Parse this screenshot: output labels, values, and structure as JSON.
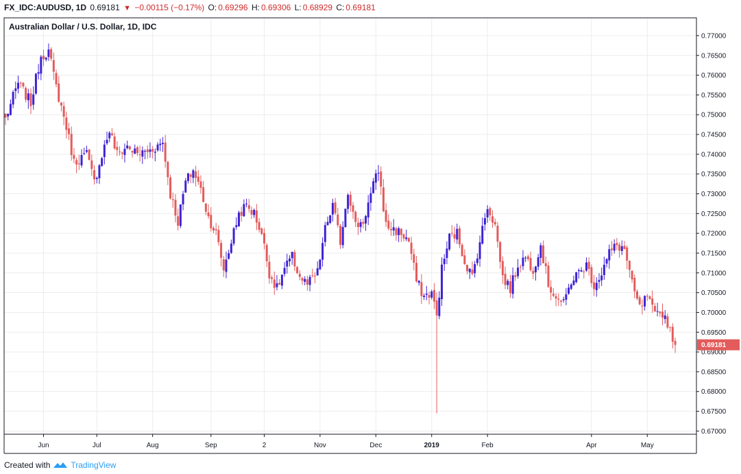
{
  "header": {
    "symbol": "FX_IDC:AUDUSD, 1D",
    "last": "0.69181",
    "change": "−0.00115 (−0.17%)",
    "open_label": "O:",
    "open": "0.69296",
    "high_label": "H:",
    "high": "0.69306",
    "low_label": "L:",
    "low": "0.68929",
    "close_label": "C:",
    "close": "0.69181"
  },
  "chart_title": "Australian Dollar / U.S. Dollar, 1D, IDC",
  "footer": {
    "created_with": "Created with",
    "brand": "TradingView",
    "logo_icon": "tradingview-logo-icon"
  },
  "colors": {
    "up": "#3d22d4",
    "down": "#e35b5b",
    "grid": "#ececec",
    "last_label_bg": "#e35b5b",
    "axis": "#131722"
  },
  "chart_data": {
    "type": "candlestick",
    "ylim": [
      0.6692,
      0.7745
    ],
    "y_ticks": [
      "0.77000",
      "0.76500",
      "0.76000",
      "0.75500",
      "0.75000",
      "0.74500",
      "0.74000",
      "0.73500",
      "0.73000",
      "0.72500",
      "0.72000",
      "0.71500",
      "0.71000",
      "0.70500",
      "0.70000",
      "0.69500",
      "0.69000",
      "0.68500",
      "0.68000",
      "0.67500",
      "0.67000"
    ],
    "x_ticks": [
      {
        "label": "Jun",
        "index": 15,
        "bold": false
      },
      {
        "label": "Jul",
        "index": 36,
        "bold": false
      },
      {
        "label": "Aug",
        "index": 58,
        "bold": false
      },
      {
        "label": "Sep",
        "index": 81,
        "bold": false
      },
      {
        "label": "2",
        "index": 102,
        "bold": false
      },
      {
        "label": "Nov",
        "index": 124,
        "bold": false
      },
      {
        "label": "Dec",
        "index": 146,
        "bold": false
      },
      {
        "label": "2019",
        "index": 168,
        "bold": true
      },
      {
        "label": "Feb",
        "index": 190,
        "bold": false
      },
      {
        "label": "Apr",
        "index": 231,
        "bold": false
      },
      {
        "label": "May",
        "index": 253,
        "bold": false
      }
    ],
    "last_price": "0.69181",
    "anchors": [
      [
        0,
        0.749
      ],
      [
        5,
        0.758
      ],
      [
        10,
        0.753
      ],
      [
        14,
        0.765
      ],
      [
        17,
        0.766
      ],
      [
        20,
        0.757
      ],
      [
        24,
        0.747
      ],
      [
        27,
        0.738
      ],
      [
        32,
        0.74
      ],
      [
        35,
        0.733
      ],
      [
        38,
        0.74
      ],
      [
        41,
        0.746
      ],
      [
        44,
        0.74
      ],
      [
        48,
        0.742
      ],
      [
        52,
        0.74
      ],
      [
        57,
        0.741
      ],
      [
        62,
        0.743
      ],
      [
        65,
        0.73
      ],
      [
        68,
        0.723
      ],
      [
        71,
        0.733
      ],
      [
        74,
        0.736
      ],
      [
        77,
        0.731
      ],
      [
        80,
        0.724
      ],
      [
        83,
        0.72
      ],
      [
        86,
        0.711
      ],
      [
        89,
        0.718
      ],
      [
        92,
        0.725
      ],
      [
        95,
        0.727
      ],
      [
        98,
        0.725
      ],
      [
        101,
        0.72
      ],
      [
        104,
        0.71
      ],
      [
        107,
        0.706
      ],
      [
        110,
        0.711
      ],
      [
        113,
        0.714
      ],
      [
        116,
        0.709
      ],
      [
        119,
        0.707
      ],
      [
        123,
        0.71
      ],
      [
        126,
        0.721
      ],
      [
        129,
        0.727
      ],
      [
        132,
        0.718
      ],
      [
        135,
        0.731
      ],
      [
        138,
        0.722
      ],
      [
        141,
        0.723
      ],
      [
        145,
        0.732
      ],
      [
        147,
        0.736
      ],
      [
        150,
        0.722
      ],
      [
        153,
        0.721
      ],
      [
        156,
        0.72
      ],
      [
        159,
        0.718
      ],
      [
        162,
        0.708
      ],
      [
        165,
        0.704
      ],
      [
        168,
        0.705
      ],
      [
        170,
        0.699
      ],
      [
        172,
        0.711
      ],
      [
        175,
        0.719
      ],
      [
        178,
        0.72
      ],
      [
        181,
        0.713
      ],
      [
        184,
        0.709
      ],
      [
        187,
        0.718
      ],
      [
        190,
        0.727
      ],
      [
        193,
        0.722
      ],
      [
        196,
        0.709
      ],
      [
        199,
        0.706
      ],
      [
        202,
        0.712
      ],
      [
        205,
        0.714
      ],
      [
        208,
        0.711
      ],
      [
        211,
        0.717
      ],
      [
        214,
        0.707
      ],
      [
        217,
        0.704
      ],
      [
        220,
        0.702
      ],
      [
        223,
        0.708
      ],
      [
        226,
        0.71
      ],
      [
        229,
        0.712
      ],
      [
        232,
        0.707
      ],
      [
        235,
        0.71
      ],
      [
        238,
        0.715
      ],
      [
        241,
        0.717
      ],
      [
        244,
        0.716
      ],
      [
        247,
        0.707
      ],
      [
        250,
        0.701
      ],
      [
        253,
        0.704
      ],
      [
        256,
        0.699
      ],
      [
        259,
        0.7
      ],
      [
        262,
        0.696
      ],
      [
        264,
        0.6918
      ]
    ],
    "spike": {
      "index": 170,
      "low": 0.6745
    },
    "total_bars": 265
  }
}
